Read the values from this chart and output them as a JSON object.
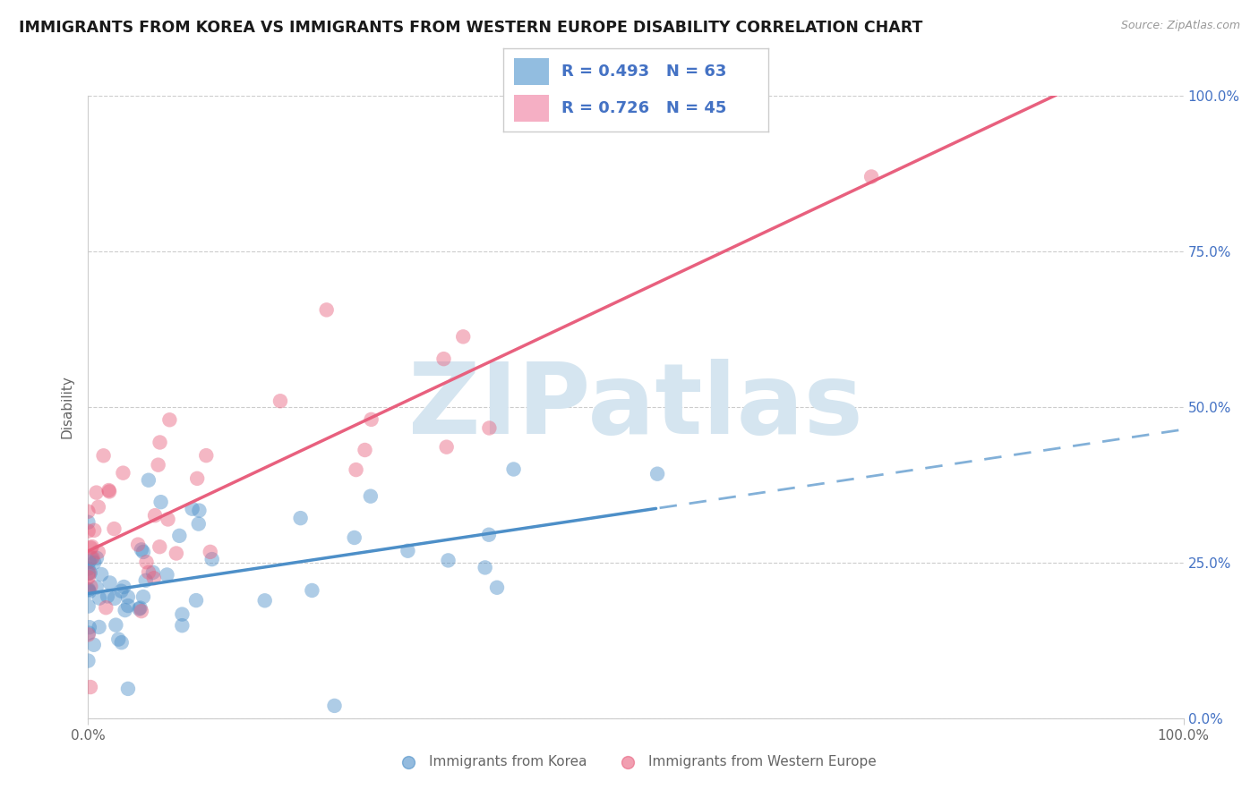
{
  "title": "IMMIGRANTS FROM KOREA VS IMMIGRANTS FROM WESTERN EUROPE DISABILITY CORRELATION CHART",
  "source": "Source: ZipAtlas.com",
  "ylabel": "Disability",
  "legend1_label": "Immigrants from Korea",
  "legend2_label": "Immigrants from Western Europe",
  "legend1_color": "#92bde0",
  "legend2_color": "#f5afc4",
  "R1": 0.493,
  "N1": 63,
  "R2": 0.726,
  "N2": 45,
  "blue_color": "#4d8fc8",
  "pink_color": "#e8607e",
  "text_color_blue": "#4472c4",
  "background_color": "#ffffff",
  "grid_color": "#cccccc",
  "watermark_text": "ZIPatlas",
  "watermark_color": "#d5e5f0",
  "title_fontsize": 12.5,
  "axis_label_color": "#666666",
  "ytick_color": "#4472c4",
  "ytick_labels": [
    "0.0%",
    "25.0%",
    "50.0%",
    "75.0%",
    "100.0%"
  ],
  "ytick_vals": [
    0.0,
    0.25,
    0.5,
    0.75,
    1.0
  ],
  "xtick_left": "0.0%",
  "xtick_right": "100.0%"
}
